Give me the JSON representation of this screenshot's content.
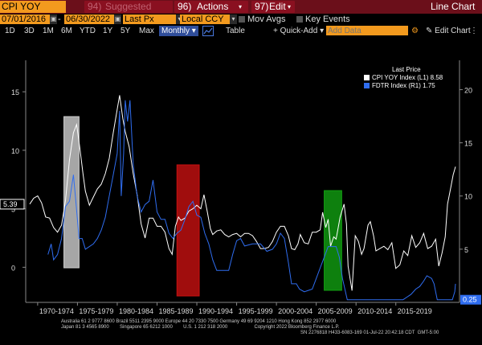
{
  "header": {
    "title": "CPI YOY Index",
    "suggested": "Suggested Charts",
    "suggested_num": "94)",
    "actions_num": "96)",
    "actions": "Actions",
    "edit_num": "97)",
    "edit": "Edit",
    "chart_type": "Line Chart"
  },
  "controls": {
    "start_date": "07/01/2016",
    "end_date": "06/30/2022",
    "price_field": "Last Px",
    "currency": "Local CCY",
    "mov_avgs": "Mov Avgs",
    "key_events": "Key Events"
  },
  "periods": [
    "1D",
    "3D",
    "1M",
    "6M",
    "YTD",
    "1Y",
    "5Y",
    "Max"
  ],
  "frequency": "Monthly",
  "table_label": "Table",
  "quick_add": "Quick-Add",
  "add_data_placeholder": "Add Data",
  "edit_chart": "Edit Chart",
  "legend": {
    "heading": "Last Price",
    "items": [
      {
        "label": "CPI YOY Index",
        "axis": "(L1)",
        "value": "8.58",
        "color": "#ffffff"
      },
      {
        "label": "FDTR Index",
        "axis": "(R1)",
        "value": "1.75",
        "color": "#2f6df0"
      }
    ]
  },
  "axes": {
    "left_ticks": [
      "15",
      "10",
      "5",
      "0"
    ],
    "left_current": "5.39",
    "right_ticks": [
      "20",
      "15",
      "10",
      "5"
    ],
    "right_current": "0.25",
    "x_labels": [
      "1970-1974",
      "1975-1979",
      "1980-1984",
      "1985-1989",
      "1990-1994",
      "1995-1999",
      "2000-2004",
      "2005-2009",
      "2010-2014",
      "2015-2019"
    ]
  },
  "highlights": [
    {
      "color": "#d0d0d0"
    },
    {
      "color": "#c81010"
    },
    {
      "color": "#12a012"
    }
  ],
  "footer": {
    "line1": "Australia 61 2 9777 8600 Brazil 5511 2395 9000 Europe 44 20 7330 7500 Germany 49 69 9204 1210 Hong Kong 852 2977 6000",
    "line2": "Japan 81 3 4565 8900        Singapore 65 6212 1000        U.S. 1 212 318 2000                    Copyright 2022 Bloomberg Finance L.P.",
    "line3": "SN 2276818 H433-6083-169 01-Jul-22 20:42:18 CDT  GMT-5:00"
  },
  "chart_data": {
    "type": "line",
    "series": [
      {
        "name": "CPI YOY Index",
        "axis": "left",
        "points": [
          [
            1969,
            5.4
          ],
          [
            1969.5,
            5.9
          ],
          [
            1970,
            6.1
          ],
          [
            1970.5,
            5.5
          ],
          [
            1971,
            4.3
          ],
          [
            1971.5,
            4.2
          ],
          [
            1972,
            3.4
          ],
          [
            1972.5,
            3.0
          ],
          [
            1973,
            3.6
          ],
          [
            1973.5,
            5.7
          ],
          [
            1974,
            9.2
          ],
          [
            1974.5,
            11.5
          ],
          [
            1974.9,
            12.2
          ],
          [
            1975.3,
            10.2
          ],
          [
            1975.7,
            8.0
          ],
          [
            1976,
            6.5
          ],
          [
            1976.5,
            5.3
          ],
          [
            1977,
            6.0
          ],
          [
            1977.5,
            6.7
          ],
          [
            1978,
            7.1
          ],
          [
            1978.5,
            8.0
          ],
          [
            1979,
            9.3
          ],
          [
            1979.5,
            11.5
          ],
          [
            1980,
            13.5
          ],
          [
            1980.3,
            14.7
          ],
          [
            1980.7,
            12.7
          ],
          [
            1981,
            11.6
          ],
          [
            1981.5,
            10.3
          ],
          [
            1982,
            8.0
          ],
          [
            1982.5,
            6.2
          ],
          [
            1983,
            3.7
          ],
          [
            1983.5,
            2.5
          ],
          [
            1984,
            4.2
          ],
          [
            1984.5,
            4.2
          ],
          [
            1985,
            3.5
          ],
          [
            1985.5,
            3.5
          ],
          [
            1986,
            3.0
          ],
          [
            1986.5,
            1.6
          ],
          [
            1986.9,
            1.1
          ],
          [
            1987.3,
            3.5
          ],
          [
            1987.7,
            4.3
          ],
          [
            1988,
            4.0
          ],
          [
            1988.5,
            4.2
          ],
          [
            1989,
            4.8
          ],
          [
            1989.5,
            5.0
          ],
          [
            1990,
            5.3
          ],
          [
            1990.5,
            5.0
          ],
          [
            1990.9,
            6.2
          ],
          [
            1991.3,
            4.8
          ],
          [
            1991.7,
            3.3
          ],
          [
            1992,
            2.8
          ],
          [
            1992.5,
            3.1
          ],
          [
            1993,
            3.2
          ],
          [
            1993.5,
            2.8
          ],
          [
            1994,
            2.6
          ],
          [
            1994.5,
            2.8
          ],
          [
            1995,
            2.9
          ],
          [
            1995.5,
            2.6
          ],
          [
            1996,
            2.9
          ],
          [
            1996.5,
            2.9
          ],
          [
            1997,
            2.7
          ],
          [
            1997.5,
            2.2
          ],
          [
            1998,
            1.6
          ],
          [
            1998.5,
            1.6
          ],
          [
            1999,
            1.7
          ],
          [
            1999.5,
            2.2
          ],
          [
            2000,
            3.0
          ],
          [
            2000.5,
            3.5
          ],
          [
            2001,
            3.5
          ],
          [
            2001.5,
            2.7
          ],
          [
            2001.9,
            1.6
          ],
          [
            2002.3,
            1.5
          ],
          [
            2002.7,
            2.0
          ],
          [
            2003,
            2.8
          ],
          [
            2003.5,
            2.1
          ],
          [
            2004,
            2.0
          ],
          [
            2004.5,
            3.0
          ],
          [
            2005,
            3.0
          ],
          [
            2005.5,
            3.2
          ],
          [
            2005.8,
            4.7
          ],
          [
            2006.2,
            3.4
          ],
          [
            2006.5,
            4.1
          ],
          [
            2006.8,
            1.8
          ],
          [
            2007.2,
            2.6
          ],
          [
            2007.5,
            2.4
          ],
          [
            2008,
            4.3
          ],
          [
            2008.5,
            5.4
          ],
          [
            2008.8,
            3.7
          ],
          [
            2009,
            0.1
          ],
          [
            2009.5,
            -2.0
          ],
          [
            2009.9,
            2.7
          ],
          [
            2010.3,
            2.2
          ],
          [
            2010.7,
            1.1
          ],
          [
            2011,
            1.6
          ],
          [
            2011.5,
            3.6
          ],
          [
            2011.8,
            3.9
          ],
          [
            2012.2,
            2.7
          ],
          [
            2012.5,
            1.4
          ],
          [
            2013,
            1.6
          ],
          [
            2013.5,
            1.8
          ],
          [
            2014,
            1.5
          ],
          [
            2014.5,
            2.1
          ],
          [
            2015,
            -0.1
          ],
          [
            2015.5,
            0.2
          ],
          [
            2016,
            1.4
          ],
          [
            2016.5,
            1.0
          ],
          [
            2017,
            2.7
          ],
          [
            2017.5,
            1.7
          ],
          [
            2018,
            2.1
          ],
          [
            2018.5,
            2.9
          ],
          [
            2019,
            1.6
          ],
          [
            2019.5,
            1.8
          ],
          [
            2020,
            2.4
          ],
          [
            2020.4,
            0.1
          ],
          [
            2020.8,
            1.2
          ],
          [
            2021.2,
            2.6
          ],
          [
            2021.5,
            5.4
          ],
          [
            2021.9,
            6.8
          ],
          [
            2022.2,
            7.9
          ],
          [
            2022.5,
            8.6
          ]
        ]
      },
      {
        "name": "FDTR Index",
        "axis": "right",
        "points": [
          [
            1971.3,
            4.5
          ],
          [
            1971.7,
            5.5
          ],
          [
            1972,
            4.0
          ],
          [
            1972.5,
            4.5
          ],
          [
            1973,
            6.0
          ],
          [
            1973.5,
            9.0
          ],
          [
            1974,
            9.5
          ],
          [
            1974.5,
            12.0
          ],
          [
            1974.8,
            9.5
          ],
          [
            1975.2,
            6.0
          ],
          [
            1975.6,
            6.0
          ],
          [
            1976,
            5.0
          ],
          [
            1977,
            5.5
          ],
          [
            1977.5,
            6.0
          ],
          [
            1978,
            6.8
          ],
          [
            1978.5,
            8.0
          ],
          [
            1979,
            10.0
          ],
          [
            1979.5,
            12.0
          ],
          [
            1980,
            14.0
          ],
          [
            1980.3,
            18.0
          ],
          [
            1980.5,
            10.0
          ],
          [
            1980.8,
            14.0
          ],
          [
            1981,
            19.0
          ],
          [
            1981.3,
            17.0
          ],
          [
            1981.6,
            19.0
          ],
          [
            1982,
            13.0
          ],
          [
            1982.5,
            10.0
          ],
          [
            1983,
            8.5
          ],
          [
            1983.5,
            9.2
          ],
          [
            1984,
            9.5
          ],
          [
            1984.5,
            11.5
          ],
          [
            1985,
            8.5
          ],
          [
            1985.5,
            7.8
          ],
          [
            1986,
            7.8
          ],
          [
            1986.5,
            6.5
          ],
          [
            1987,
            6.0
          ],
          [
            1987.5,
            6.5
          ],
          [
            1988,
            6.8
          ],
          [
            1988.5,
            7.8
          ],
          [
            1989,
            9.0
          ],
          [
            1989.5,
            9.5
          ],
          [
            1990,
            8.2
          ],
          [
            1990.5,
            8.0
          ],
          [
            1991,
            6.5
          ],
          [
            1991.5,
            5.5
          ],
          [
            1992,
            4.0
          ],
          [
            1992.5,
            3.0
          ],
          [
            1993,
            3.0
          ],
          [
            1993.5,
            3.0
          ],
          [
            1994,
            3.0
          ],
          [
            1994.5,
            4.5
          ],
          [
            1995,
            5.8
          ],
          [
            1995.5,
            6.0
          ],
          [
            1996,
            5.3
          ],
          [
            1997,
            5.5
          ],
          [
            1998,
            5.5
          ],
          [
            1998.8,
            4.8
          ],
          [
            1999.5,
            5.0
          ],
          [
            2000,
            5.5
          ],
          [
            2000.5,
            6.5
          ],
          [
            2001,
            6.0
          ],
          [
            2001.5,
            3.75
          ],
          [
            2001.9,
            1.75
          ],
          [
            2002.5,
            1.75
          ],
          [
            2002.9,
            1.25
          ],
          [
            2003.5,
            1.0
          ],
          [
            2004.5,
            1.25
          ],
          [
            2005,
            2.25
          ],
          [
            2005.5,
            3.25
          ],
          [
            2006,
            4.25
          ],
          [
            2006.5,
            5.25
          ],
          [
            2007.5,
            5.25
          ],
          [
            2007.9,
            4.25
          ],
          [
            2008.3,
            2.25
          ],
          [
            2008.9,
            0.25
          ],
          [
            2015.9,
            0.25
          ],
          [
            2016.9,
            0.75
          ],
          [
            2017.5,
            1.25
          ],
          [
            2018,
            1.5
          ],
          [
            2018.5,
            2.0
          ],
          [
            2018.9,
            2.5
          ],
          [
            2019.5,
            2.25
          ],
          [
            2019.8,
            1.75
          ],
          [
            2020.2,
            0.25
          ],
          [
            2022.1,
            0.25
          ],
          [
            2022.2,
            0.5
          ],
          [
            2022.4,
            1.0
          ],
          [
            2022.5,
            1.75
          ]
        ]
      }
    ],
    "x_range": [
      1968.5,
      2023
    ],
    "left_ylim": [
      -3,
      17
    ],
    "right_ylim": [
      0,
      22
    ],
    "highlight_ranges": [
      [
        1973.3,
        1975.2
      ],
      [
        1987.5,
        1990.3
      ],
      [
        2006.0,
        2008.2
      ]
    ]
  }
}
